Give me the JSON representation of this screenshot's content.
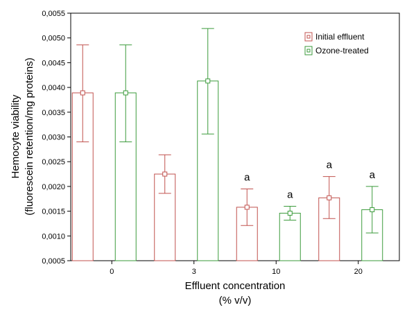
{
  "chart_data": {
    "type": "bar",
    "subtype": "grouped bar with error bars",
    "categories": [
      "0",
      "3",
      "10",
      "20"
    ],
    "series": [
      {
        "name": "Initial effluent",
        "color": "#c0504d",
        "values": [
          0.00389,
          0.00225,
          0.00158,
          0.00177
        ],
        "err_low": [
          0.0029,
          0.00186,
          0.00121,
          0.00135
        ],
        "err_high": [
          0.00486,
          0.00264,
          0.00195,
          0.0022
        ]
      },
      {
        "name": "Ozone-treated",
        "color": "#3a9a3a",
        "values": [
          0.00389,
          0.00413,
          0.00146,
          0.00153
        ],
        "err_low": [
          0.0029,
          0.00306,
          0.00132,
          0.00106
        ],
        "err_high": [
          0.00486,
          0.00519,
          0.0016,
          0.002
        ]
      }
    ],
    "annotations": [
      {
        "category": "10",
        "series": "Initial effluent",
        "text": "a"
      },
      {
        "category": "10",
        "series": "Ozone-treated",
        "text": "a"
      },
      {
        "category": "20",
        "series": "Initial effluent",
        "text": "a"
      },
      {
        "category": "20",
        "series": "Ozone-treated",
        "text": "a"
      }
    ],
    "xlabel": [
      "Effluent concentration",
      "(% v/v)"
    ],
    "ylabel": [
      "Hemocyte viability",
      "(fluorescein retention/mg proteins)"
    ],
    "ylim": [
      0.0005,
      0.0055
    ],
    "yticks": [
      "0,0005",
      "0,0010",
      "0,0015",
      "0,0020",
      "0,0025",
      "0,0030",
      "0,0035",
      "0,0040",
      "0,0045",
      "0,0050",
      "0,0055"
    ],
    "grid": false,
    "legend_position": "top-right"
  }
}
